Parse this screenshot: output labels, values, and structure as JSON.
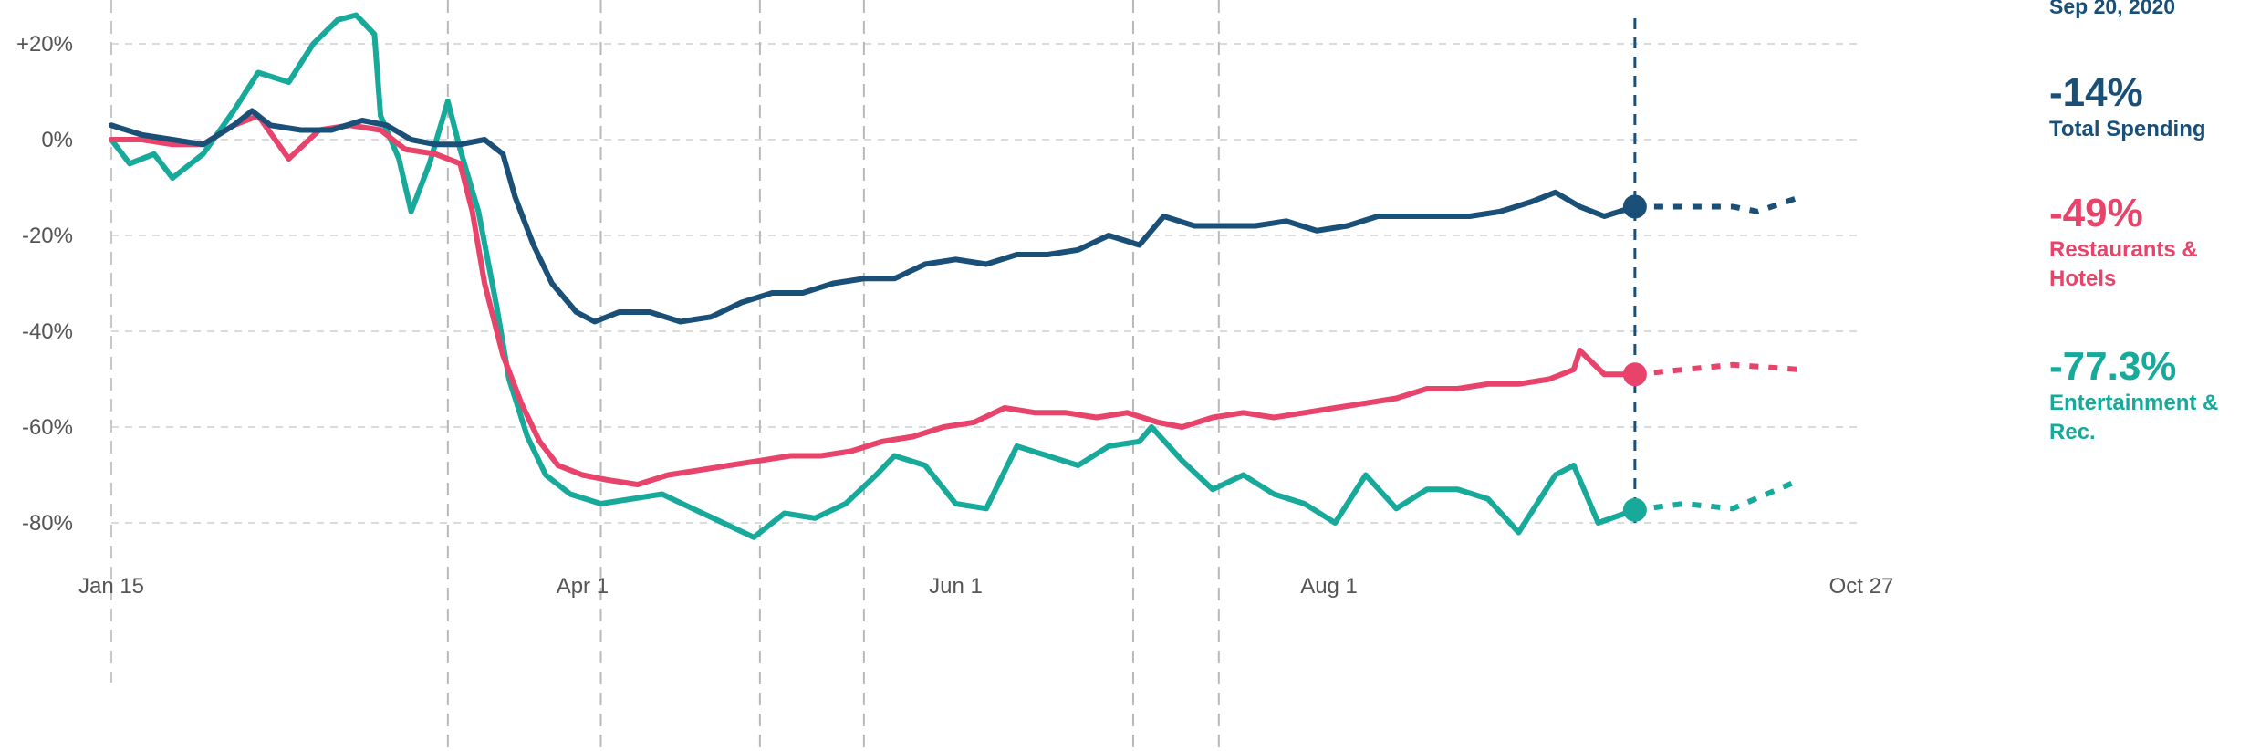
{
  "chart_data": {
    "type": "line",
    "title": "",
    "xlabel": "",
    "ylabel": "",
    "x_range": [
      "2020-01-15",
      "2020-10-27"
    ],
    "ylim": [
      -80,
      20
    ],
    "x_ticks": [
      {
        "date": "2020-01-15",
        "label": "Jan 15"
      },
      {
        "date": "2020-04-01",
        "label": "Apr 1"
      },
      {
        "date": "2020-06-01",
        "label": "Jun 1"
      },
      {
        "date": "2020-08-01",
        "label": "Aug 1"
      },
      {
        "date": "2020-10-27",
        "label": "Oct 27"
      }
    ],
    "y_ticks": [
      {
        "value": 20,
        "label": "+20%"
      },
      {
        "value": 0,
        "label": "0%"
      },
      {
        "value": -20,
        "label": "-20%"
      },
      {
        "value": -40,
        "label": "-40%"
      },
      {
        "value": -60,
        "label": "-60%"
      },
      {
        "value": -80,
        "label": "-80%"
      }
    ],
    "grid": true,
    "event_lines": [
      "2020-03-10",
      "2020-04-04",
      "2020-04-30",
      "2020-05-17",
      "2020-06-30",
      "2020-07-14"
    ],
    "current_date": "2020-09-20",
    "current_date_label": "Sep 20, 2020",
    "legend_position": "right",
    "series": [
      {
        "name": "Total Spending",
        "color": "#1a4f78",
        "current_value_label": "-14%",
        "values": [
          [
            "2020-01-15",
            3
          ],
          [
            "2020-01-20",
            1
          ],
          [
            "2020-01-25",
            0
          ],
          [
            "2020-01-30",
            -1
          ],
          [
            "2020-02-04",
            3
          ],
          [
            "2020-02-07",
            6
          ],
          [
            "2020-02-10",
            3
          ],
          [
            "2020-02-15",
            2
          ],
          [
            "2020-02-20",
            2
          ],
          [
            "2020-02-25",
            4
          ],
          [
            "2020-02-29",
            3
          ],
          [
            "2020-03-04",
            0
          ],
          [
            "2020-03-08",
            -1
          ],
          [
            "2020-03-12",
            -1
          ],
          [
            "2020-03-16",
            0
          ],
          [
            "2020-03-19",
            -3
          ],
          [
            "2020-03-21",
            -12
          ],
          [
            "2020-03-24",
            -22
          ],
          [
            "2020-03-27",
            -30
          ],
          [
            "2020-03-31",
            -36
          ],
          [
            "2020-04-03",
            -38
          ],
          [
            "2020-04-07",
            -36
          ],
          [
            "2020-04-12",
            -36
          ],
          [
            "2020-04-17",
            -38
          ],
          [
            "2020-04-22",
            -37
          ],
          [
            "2020-04-27",
            -34
          ],
          [
            "2020-05-02",
            -32
          ],
          [
            "2020-05-07",
            -32
          ],
          [
            "2020-05-12",
            -30
          ],
          [
            "2020-05-17",
            -29
          ],
          [
            "2020-05-22",
            -29
          ],
          [
            "2020-05-27",
            -26
          ],
          [
            "2020-06-01",
            -25
          ],
          [
            "2020-06-06",
            -26
          ],
          [
            "2020-06-11",
            -24
          ],
          [
            "2020-06-16",
            -24
          ],
          [
            "2020-06-21",
            -23
          ],
          [
            "2020-06-26",
            -20
          ],
          [
            "2020-07-01",
            -22
          ],
          [
            "2020-07-05",
            -16
          ],
          [
            "2020-07-10",
            -18
          ],
          [
            "2020-07-15",
            -18
          ],
          [
            "2020-07-20",
            -18
          ],
          [
            "2020-07-25",
            -17
          ],
          [
            "2020-07-30",
            -19
          ],
          [
            "2020-08-04",
            -18
          ],
          [
            "2020-08-09",
            -16
          ],
          [
            "2020-08-14",
            -16
          ],
          [
            "2020-08-19",
            -16
          ],
          [
            "2020-08-24",
            -16
          ],
          [
            "2020-08-29",
            -15
          ],
          [
            "2020-09-03",
            -13
          ],
          [
            "2020-09-07",
            -11
          ],
          [
            "2020-09-11",
            -14
          ],
          [
            "2020-09-15",
            -16
          ],
          [
            "2020-09-20",
            -14
          ]
        ],
        "forecast": [
          [
            "2020-09-20",
            -14
          ],
          [
            "2020-09-28",
            -14
          ],
          [
            "2020-10-06",
            -14
          ],
          [
            "2020-10-10",
            -15
          ],
          [
            "2020-10-17",
            -12
          ]
        ]
      },
      {
        "name": "Restaurants & Hotels",
        "color": "#e8436a",
        "current_value_label": "-49%",
        "values": [
          [
            "2020-01-15",
            0
          ],
          [
            "2020-01-20",
            0
          ],
          [
            "2020-01-25",
            -1
          ],
          [
            "2020-01-30",
            -1
          ],
          [
            "2020-02-04",
            3
          ],
          [
            "2020-02-08",
            5
          ],
          [
            "2020-02-13",
            -4
          ],
          [
            "2020-02-18",
            2
          ],
          [
            "2020-02-23",
            3
          ],
          [
            "2020-02-28",
            2
          ],
          [
            "2020-03-03",
            -2
          ],
          [
            "2020-03-08",
            -3
          ],
          [
            "2020-03-12",
            -5
          ],
          [
            "2020-03-14",
            -15
          ],
          [
            "2020-03-16",
            -30
          ],
          [
            "2020-03-19",
            -45
          ],
          [
            "2020-03-22",
            -55
          ],
          [
            "2020-03-25",
            -63
          ],
          [
            "2020-03-28",
            -68
          ],
          [
            "2020-04-01",
            -70
          ],
          [
            "2020-04-05",
            -71
          ],
          [
            "2020-04-10",
            -72
          ],
          [
            "2020-04-15",
            -70
          ],
          [
            "2020-04-20",
            -69
          ],
          [
            "2020-04-25",
            -68
          ],
          [
            "2020-04-30",
            -67
          ],
          [
            "2020-05-05",
            -66
          ],
          [
            "2020-05-10",
            -66
          ],
          [
            "2020-05-15",
            -65
          ],
          [
            "2020-05-20",
            -63
          ],
          [
            "2020-05-25",
            -62
          ],
          [
            "2020-05-30",
            -60
          ],
          [
            "2020-06-04",
            -59
          ],
          [
            "2020-06-09",
            -56
          ],
          [
            "2020-06-14",
            -57
          ],
          [
            "2020-06-19",
            -57
          ],
          [
            "2020-06-24",
            -58
          ],
          [
            "2020-06-29",
            -57
          ],
          [
            "2020-07-04",
            -59
          ],
          [
            "2020-07-08",
            -60
          ],
          [
            "2020-07-13",
            -58
          ],
          [
            "2020-07-18",
            -57
          ],
          [
            "2020-07-23",
            -58
          ],
          [
            "2020-07-28",
            -57
          ],
          [
            "2020-08-02",
            -56
          ],
          [
            "2020-08-07",
            -55
          ],
          [
            "2020-08-12",
            -54
          ],
          [
            "2020-08-17",
            -52
          ],
          [
            "2020-08-22",
            -52
          ],
          [
            "2020-08-27",
            -51
          ],
          [
            "2020-09-01",
            -51
          ],
          [
            "2020-09-06",
            -50
          ],
          [
            "2020-09-10",
            -48
          ],
          [
            "2020-09-11",
            -44
          ],
          [
            "2020-09-15",
            -49
          ],
          [
            "2020-09-20",
            -49
          ]
        ],
        "forecast": [
          [
            "2020-09-20",
            -49
          ],
          [
            "2020-09-28",
            -48
          ],
          [
            "2020-10-06",
            -47
          ],
          [
            "2020-10-17",
            -48
          ]
        ]
      },
      {
        "name": "Entertainment & Rec.",
        "color": "#17a99a",
        "current_value_label": "-77.3%",
        "values": [
          [
            "2020-01-15",
            0
          ],
          [
            "2020-01-18",
            -5
          ],
          [
            "2020-01-22",
            -3
          ],
          [
            "2020-01-25",
            -8
          ],
          [
            "2020-01-30",
            -3
          ],
          [
            "2020-02-04",
            6
          ],
          [
            "2020-02-08",
            14
          ],
          [
            "2020-02-13",
            12
          ],
          [
            "2020-02-17",
            20
          ],
          [
            "2020-02-21",
            25
          ],
          [
            "2020-02-24",
            26
          ],
          [
            "2020-02-27",
            22
          ],
          [
            "2020-02-28",
            5
          ],
          [
            "2020-03-02",
            -4
          ],
          [
            "2020-03-04",
            -15
          ],
          [
            "2020-03-07",
            -5
          ],
          [
            "2020-03-10",
            8
          ],
          [
            "2020-03-12",
            -2
          ],
          [
            "2020-03-15",
            -15
          ],
          [
            "2020-03-18",
            -35
          ],
          [
            "2020-03-20",
            -50
          ],
          [
            "2020-03-23",
            -62
          ],
          [
            "2020-03-26",
            -70
          ],
          [
            "2020-03-30",
            -74
          ],
          [
            "2020-04-04",
            -76
          ],
          [
            "2020-04-09",
            -75
          ],
          [
            "2020-04-14",
            -74
          ],
          [
            "2020-04-19",
            -77
          ],
          [
            "2020-04-24",
            -80
          ],
          [
            "2020-04-29",
            -83
          ],
          [
            "2020-05-04",
            -78
          ],
          [
            "2020-05-09",
            -79
          ],
          [
            "2020-05-14",
            -76
          ],
          [
            "2020-05-19",
            -70
          ],
          [
            "2020-05-22",
            -66
          ],
          [
            "2020-05-27",
            -68
          ],
          [
            "2020-06-01",
            -76
          ],
          [
            "2020-06-06",
            -77
          ],
          [
            "2020-06-11",
            -64
          ],
          [
            "2020-06-16",
            -66
          ],
          [
            "2020-06-21",
            -68
          ],
          [
            "2020-06-26",
            -64
          ],
          [
            "2020-07-01",
            -63
          ],
          [
            "2020-07-03",
            -60
          ],
          [
            "2020-07-08",
            -67
          ],
          [
            "2020-07-13",
            -73
          ],
          [
            "2020-07-18",
            -70
          ],
          [
            "2020-07-23",
            -74
          ],
          [
            "2020-07-28",
            -76
          ],
          [
            "2020-08-02",
            -80
          ],
          [
            "2020-08-07",
            -70
          ],
          [
            "2020-08-12",
            -77
          ],
          [
            "2020-08-17",
            -73
          ],
          [
            "2020-08-22",
            -73
          ],
          [
            "2020-08-27",
            -75
          ],
          [
            "2020-09-01",
            -82
          ],
          [
            "2020-09-07",
            -70
          ],
          [
            "2020-09-10",
            -68
          ],
          [
            "2020-09-14",
            -80
          ],
          [
            "2020-09-20",
            -77.3
          ]
        ],
        "forecast": [
          [
            "2020-09-20",
            -77.3
          ],
          [
            "2020-09-28",
            -76
          ],
          [
            "2020-10-06",
            -77
          ],
          [
            "2020-10-17",
            -71
          ]
        ]
      }
    ]
  }
}
